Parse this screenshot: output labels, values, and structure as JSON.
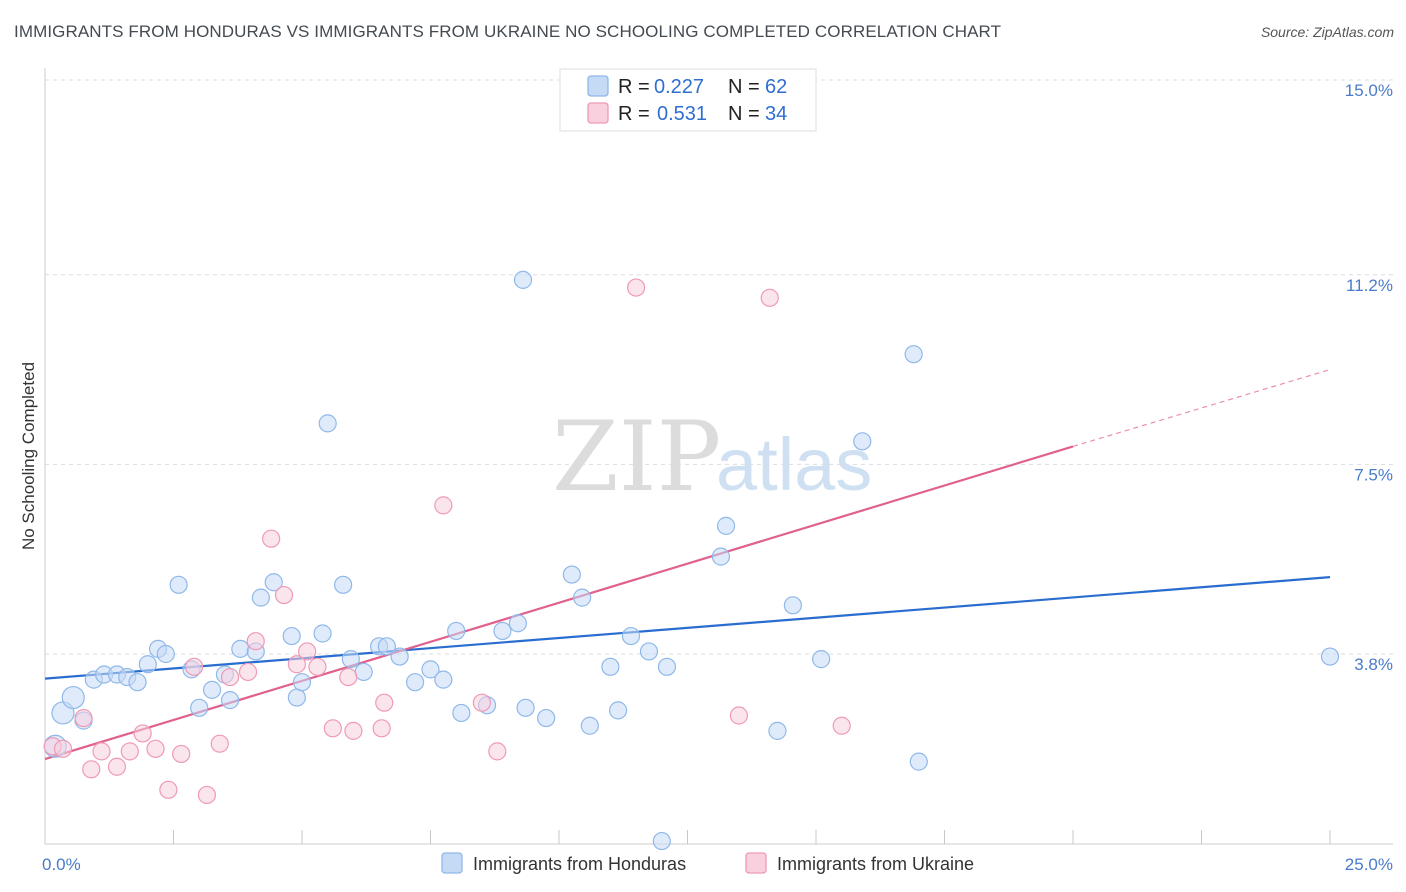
{
  "title": "IMMIGRANTS FROM HONDURAS VS IMMIGRANTS FROM UKRAINE NO SCHOOLING COMPLETED CORRELATION CHART",
  "source": "Source: ZipAtlas.com",
  "watermark": {
    "zip": "ZIP",
    "atlas": "atlas"
  },
  "chart_data": {
    "type": "scatter",
    "ylabel": "No Schooling Completed",
    "xlim": [
      0,
      25
    ],
    "ylim": [
      0,
      15.5
    ],
    "x_tick_labels": [
      {
        "value": 0,
        "label": "0.0%"
      },
      {
        "value": 25,
        "label": "25.0%"
      }
    ],
    "y_tick_labels": [
      {
        "value": 3.8,
        "label": "3.8%"
      },
      {
        "value": 7.5,
        "label": "7.5%"
      },
      {
        "value": 11.2,
        "label": "11.2%"
      },
      {
        "value": 15.0,
        "label": "15.0%"
      }
    ],
    "x_minor_ticks": [
      2.5,
      5,
      7.5,
      10,
      12.5,
      15,
      17.5,
      20,
      22.5
    ],
    "grid": "horizontal dashed",
    "legend_position": "top-center",
    "legend": [
      {
        "r_label": "R =",
        "r_value": "0.227",
        "n_label": "N =",
        "n_value": "62"
      },
      {
        "r_label": "R =",
        "r_value": "0.531",
        "n_label": "N =",
        "n_value": "34"
      }
    ],
    "series": [
      {
        "name": "Immigrants from Honduras",
        "color": "#8fb8ea",
        "fill": "#c5daf5",
        "line_color": "#2a6dd0",
        "trend": {
          "x0": 0,
          "y0": 3.32,
          "x1": 25,
          "y1": 5.3
        },
        "points": [
          [
            0.2,
            2.0
          ],
          [
            0.35,
            2.65
          ],
          [
            0.55,
            2.95
          ],
          [
            0.75,
            2.5
          ],
          [
            0.95,
            3.3
          ],
          [
            1.15,
            3.4
          ],
          [
            1.4,
            3.4
          ],
          [
            1.6,
            3.35
          ],
          [
            1.8,
            3.25
          ],
          [
            2.0,
            3.6
          ],
          [
            2.2,
            3.9
          ],
          [
            2.35,
            3.8
          ],
          [
            2.6,
            5.15
          ],
          [
            2.85,
            3.5
          ],
          [
            3.0,
            2.75
          ],
          [
            3.25,
            3.1
          ],
          [
            3.5,
            3.4
          ],
          [
            3.6,
            2.9
          ],
          [
            3.8,
            3.9
          ],
          [
            4.1,
            3.85
          ],
          [
            4.2,
            4.9
          ],
          [
            4.45,
            5.2
          ],
          [
            4.8,
            4.15
          ],
          [
            4.9,
            2.95
          ],
          [
            5.0,
            3.25
          ],
          [
            5.4,
            4.2
          ],
          [
            5.5,
            8.3
          ],
          [
            5.8,
            5.15
          ],
          [
            5.95,
            3.7
          ],
          [
            6.2,
            3.45
          ],
          [
            6.5,
            3.95
          ],
          [
            6.65,
            3.95
          ],
          [
            6.9,
            3.75
          ],
          [
            7.2,
            3.25
          ],
          [
            7.5,
            3.5
          ],
          [
            7.75,
            3.3
          ],
          [
            8.0,
            4.25
          ],
          [
            8.1,
            2.65
          ],
          [
            8.6,
            2.8
          ],
          [
            8.9,
            4.25
          ],
          [
            9.2,
            4.4
          ],
          [
            9.35,
            2.75
          ],
          [
            9.75,
            2.55
          ],
          [
            9.3,
            11.1
          ],
          [
            10.25,
            5.35
          ],
          [
            10.45,
            4.9
          ],
          [
            10.6,
            2.4
          ],
          [
            11.0,
            3.55
          ],
          [
            11.15,
            2.7
          ],
          [
            11.4,
            4.15
          ],
          [
            11.75,
            3.85
          ],
          [
            12.1,
            3.55
          ],
          [
            12.0,
            0.15
          ],
          [
            13.15,
            5.7
          ],
          [
            13.25,
            6.3
          ],
          [
            14.25,
            2.3
          ],
          [
            14.55,
            4.75
          ],
          [
            15.1,
            3.7
          ],
          [
            15.9,
            7.95
          ],
          [
            16.9,
            9.65
          ],
          [
            17.0,
            1.7
          ],
          [
            25.0,
            3.75
          ]
        ],
        "sizes": {
          "large": [
            [
              0.2,
              2.0
            ],
            [
              0.35,
              2.65
            ],
            [
              0.55,
              2.95
            ]
          ]
        }
      },
      {
        "name": "Immigrants from Ukraine",
        "color": "#ef9ab5",
        "fill": "#f8d0de",
        "line_color": "#e0608e",
        "trend": {
          "x0": 0,
          "y0": 1.75,
          "x1": 20,
          "y1": 7.85
        },
        "trend_dashed": {
          "x0": 20,
          "y0": 7.85,
          "x1": 25,
          "y1": 9.35
        },
        "points": [
          [
            0.15,
            2.0
          ],
          [
            0.35,
            1.95
          ],
          [
            0.75,
            2.55
          ],
          [
            0.9,
            1.55
          ],
          [
            1.1,
            1.9
          ],
          [
            1.4,
            1.6
          ],
          [
            1.65,
            1.9
          ],
          [
            1.9,
            2.25
          ],
          [
            2.15,
            1.95
          ],
          [
            2.4,
            1.15
          ],
          [
            2.65,
            1.85
          ],
          [
            2.9,
            3.55
          ],
          [
            3.15,
            1.05
          ],
          [
            3.4,
            2.05
          ],
          [
            3.6,
            3.35
          ],
          [
            3.95,
            3.45
          ],
          [
            4.1,
            4.05
          ],
          [
            4.4,
            6.05
          ],
          [
            4.65,
            4.95
          ],
          [
            4.9,
            3.6
          ],
          [
            5.1,
            3.85
          ],
          [
            5.3,
            3.55
          ],
          [
            5.6,
            2.35
          ],
          [
            5.9,
            3.35
          ],
          [
            6.0,
            2.3
          ],
          [
            6.55,
            2.35
          ],
          [
            6.6,
            2.85
          ],
          [
            7.75,
            6.7
          ],
          [
            8.5,
            2.85
          ],
          [
            8.8,
            1.9
          ],
          [
            11.5,
            10.95
          ],
          [
            13.5,
            2.6
          ],
          [
            14.1,
            10.75
          ],
          [
            15.5,
            2.4
          ]
        ]
      }
    ]
  }
}
